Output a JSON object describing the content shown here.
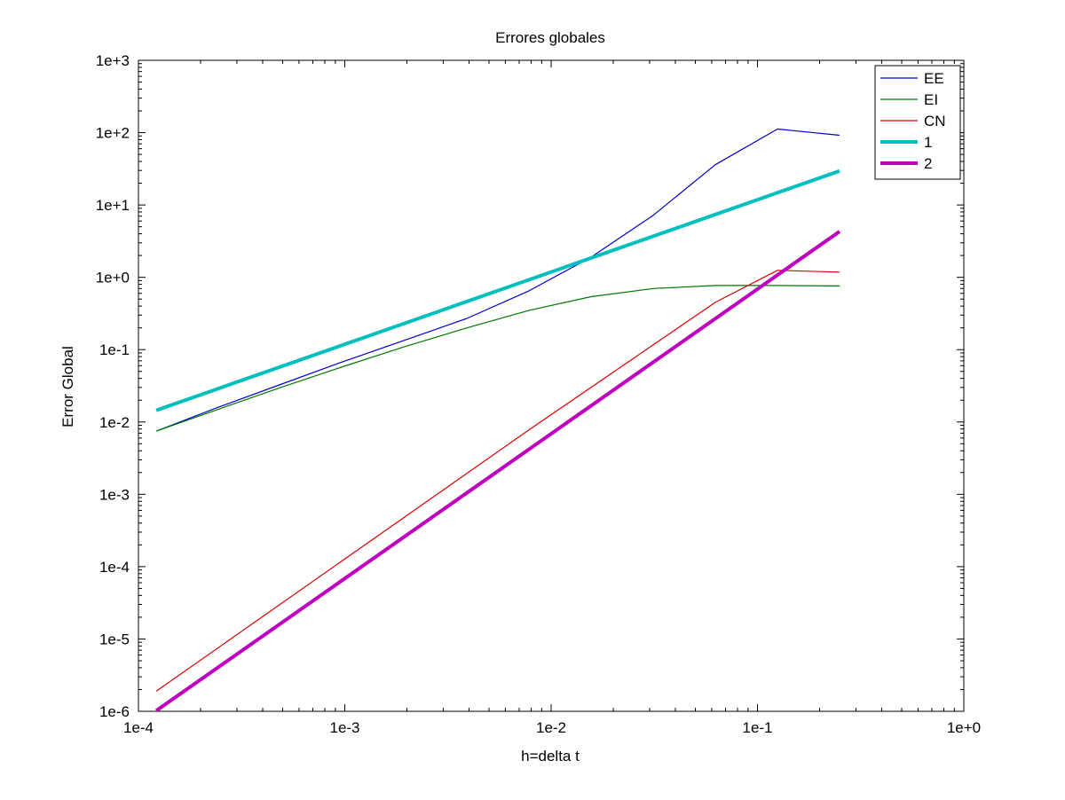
{
  "chart_data": {
    "type": "line",
    "title": "Errores globales",
    "xlabel": "h=delta t",
    "ylabel": "Error Global",
    "xscale": "log",
    "yscale": "log",
    "xlim": [
      0.0001,
      1
    ],
    "ylim": [
      1e-06,
      1000
    ],
    "x_ticks": [
      {
        "value": 0.0001,
        "label": "1e-4"
      },
      {
        "value": 0.001,
        "label": "1e-3"
      },
      {
        "value": 0.01,
        "label": "1e-2"
      },
      {
        "value": 0.1,
        "label": "1e-1"
      },
      {
        "value": 1,
        "label": "1e+0"
      }
    ],
    "y_ticks": [
      {
        "value": 1e-06,
        "label": "1e-6"
      },
      {
        "value": 1e-05,
        "label": "1e-5"
      },
      {
        "value": 0.0001,
        "label": "1e-4"
      },
      {
        "value": 0.001,
        "label": "1e-3"
      },
      {
        "value": 0.01,
        "label": "1e-2"
      },
      {
        "value": 0.1,
        "label": "1e-1"
      },
      {
        "value": 1,
        "label": "1e+0"
      },
      {
        "value": 10,
        "label": "1e+1"
      },
      {
        "value": 100,
        "label": "1e+2"
      },
      {
        "value": 1000,
        "label": "1e+3"
      }
    ],
    "grid": false,
    "legend_position": "top-right",
    "series": [
      {
        "name": "EE",
        "color": "#0000cc",
        "width": 1.2,
        "x": [
          0.00012207,
          0.00024414,
          0.00048828,
          0.00097656,
          0.00195313,
          0.00390625,
          0.0078125,
          0.015625,
          0.03125,
          0.0625,
          0.125,
          0.25
        ],
        "y": [
          0.0075,
          0.016,
          0.033,
          0.068,
          0.135,
          0.27,
          0.65,
          1.9,
          7.2,
          36,
          112,
          92
        ]
      },
      {
        "name": "EI",
        "color": "#007700",
        "width": 1.2,
        "x": [
          0.00012207,
          0.00024414,
          0.00048828,
          0.00097656,
          0.00195313,
          0.00390625,
          0.0078125,
          0.015625,
          0.03125,
          0.0625,
          0.125,
          0.25
        ],
        "y": [
          0.0075,
          0.015,
          0.03,
          0.058,
          0.11,
          0.2,
          0.35,
          0.54,
          0.7,
          0.77,
          0.77,
          0.76
        ]
      },
      {
        "name": "CN",
        "color": "#dd0000",
        "width": 1.2,
        "x": [
          0.00012207,
          0.0078125,
          0.0625,
          0.125,
          0.25
        ],
        "y": [
          1.9e-06,
          0.0078,
          0.45,
          1.25,
          1.18
        ]
      },
      {
        "name": "1",
        "color": "#00bfbf",
        "width": 4,
        "x": [
          0.00012207,
          0.25
        ],
        "y": [
          0.0145,
          29.5
        ]
      },
      {
        "name": "2",
        "color": "#bf00bf",
        "width": 4,
        "x": [
          0.00012207,
          0.25
        ],
        "y": [
          1.02e-06,
          4.3
        ]
      }
    ]
  }
}
